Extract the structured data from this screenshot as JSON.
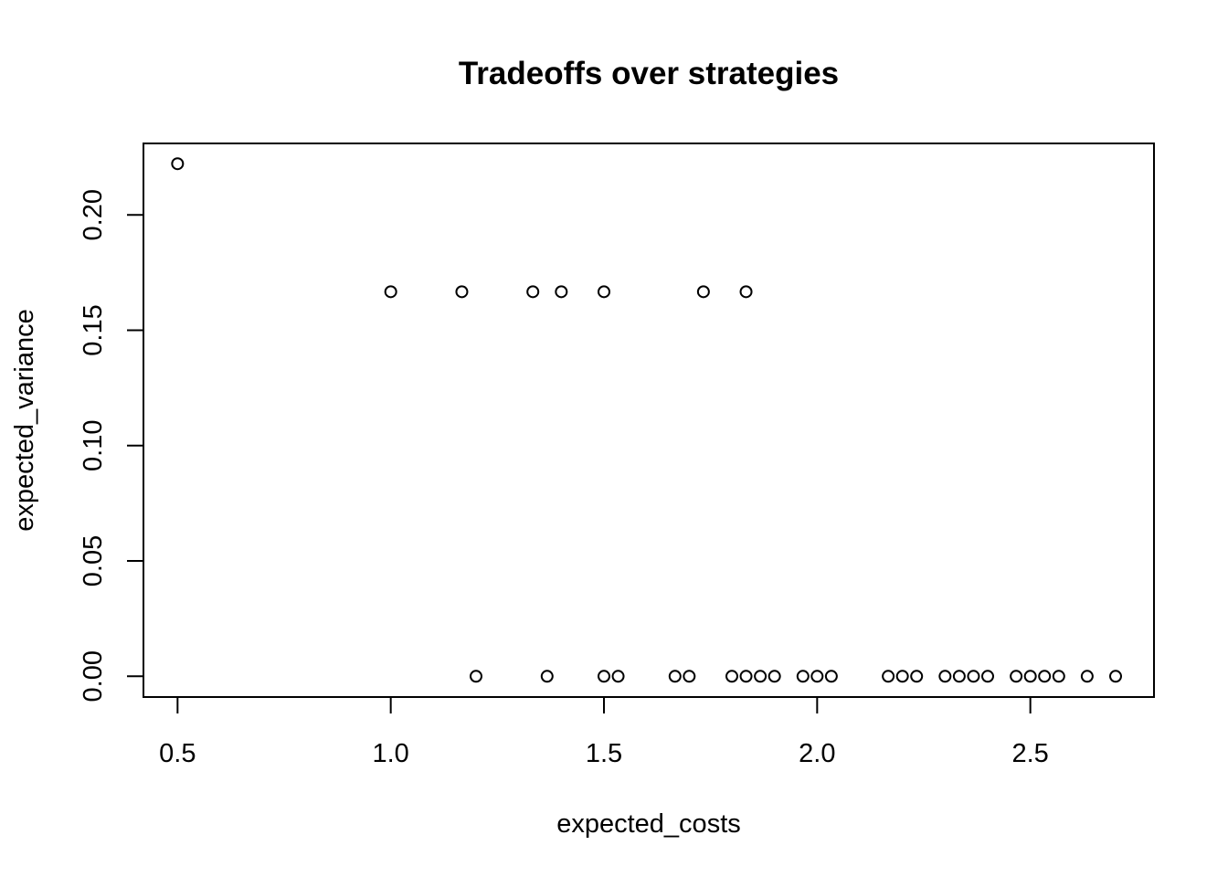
{
  "chart_data": {
    "type": "scatter",
    "title": "Tradeoffs over strategies",
    "xlabel": "expected_costs",
    "ylabel": "expected_variance",
    "xlim": [
      0.42,
      2.79
    ],
    "ylim": [
      -0.009,
      0.231
    ],
    "x_ticks": [
      0.5,
      1.0,
      1.5,
      2.0,
      2.5
    ],
    "x_tick_labels": [
      "0.5",
      "1.0",
      "1.5",
      "2.0",
      "2.5"
    ],
    "y_ticks": [
      0.0,
      0.05,
      0.1,
      0.15,
      0.2
    ],
    "y_tick_labels": [
      "0.00",
      "0.05",
      "0.10",
      "0.15",
      "0.20"
    ],
    "grid": false,
    "marker": "open-circle",
    "points": [
      {
        "x": 0.5,
        "y": 0.2222
      },
      {
        "x": 1.0,
        "y": 0.1667
      },
      {
        "x": 1.1667,
        "y": 0.1667
      },
      {
        "x": 1.3333,
        "y": 0.1667
      },
      {
        "x": 1.4,
        "y": 0.1667
      },
      {
        "x": 1.5,
        "y": 0.1667
      },
      {
        "x": 1.7333,
        "y": 0.1667
      },
      {
        "x": 1.8333,
        "y": 0.1667
      },
      {
        "x": 1.2,
        "y": 0.0
      },
      {
        "x": 1.3667,
        "y": 0.0
      },
      {
        "x": 1.5,
        "y": 0.0
      },
      {
        "x": 1.5333,
        "y": 0.0
      },
      {
        "x": 1.6667,
        "y": 0.0
      },
      {
        "x": 1.7,
        "y": 0.0
      },
      {
        "x": 1.8,
        "y": 0.0
      },
      {
        "x": 1.8333,
        "y": 0.0
      },
      {
        "x": 1.8667,
        "y": 0.0
      },
      {
        "x": 1.9,
        "y": 0.0
      },
      {
        "x": 1.9667,
        "y": 0.0
      },
      {
        "x": 2.0,
        "y": 0.0
      },
      {
        "x": 2.0333,
        "y": 0.0
      },
      {
        "x": 2.1667,
        "y": 0.0
      },
      {
        "x": 2.2,
        "y": 0.0
      },
      {
        "x": 2.2333,
        "y": 0.0
      },
      {
        "x": 2.3,
        "y": 0.0
      },
      {
        "x": 2.3333,
        "y": 0.0
      },
      {
        "x": 2.3667,
        "y": 0.0
      },
      {
        "x": 2.4,
        "y": 0.0
      },
      {
        "x": 2.4667,
        "y": 0.0
      },
      {
        "x": 2.5,
        "y": 0.0
      },
      {
        "x": 2.5333,
        "y": 0.0
      },
      {
        "x": 2.5667,
        "y": 0.0
      },
      {
        "x": 2.6333,
        "y": 0.0
      },
      {
        "x": 2.7,
        "y": 0.0
      }
    ]
  }
}
